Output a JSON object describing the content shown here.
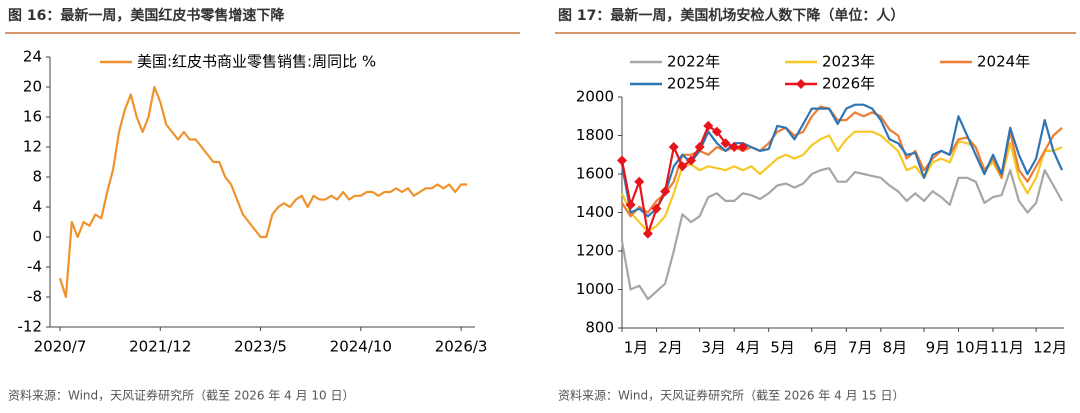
{
  "chart_data": [
    {
      "type": "line",
      "title": "图 16：最新一周，美国红皮书零售增速下降",
      "source": "资料来源：Wind，天风证券研究所（截至 2026 年 4 月 10 日）",
      "categories": [
        "2020/7",
        null,
        null,
        null,
        null,
        null,
        null,
        null,
        null,
        null,
        null,
        null,
        null,
        null,
        null,
        null,
        null,
        "2021/12",
        null,
        null,
        null,
        null,
        null,
        null,
        null,
        null,
        null,
        null,
        null,
        null,
        null,
        null,
        null,
        null,
        "2023/5",
        null,
        null,
        null,
        null,
        null,
        null,
        null,
        null,
        null,
        null,
        null,
        null,
        null,
        null,
        null,
        null,
        "2024/10",
        null,
        null,
        null,
        null,
        null,
        null,
        null,
        null,
        null,
        null,
        null,
        null,
        null,
        null,
        null,
        null,
        "2026/3",
        null
      ],
      "series": [
        {
          "name": "美国:红皮书商业零售销售:周同比 %",
          "color": "#f0922b",
          "values": [
            -5.5,
            -8,
            2,
            0,
            2,
            1.5,
            3,
            2.5,
            6,
            9,
            14,
            17,
            19,
            16,
            14,
            16,
            20,
            18,
            15,
            14,
            13,
            14,
            13,
            13,
            12,
            11,
            10,
            10,
            8,
            7,
            5,
            3,
            2,
            1,
            0,
            0,
            3,
            4,
            4.5,
            4,
            5,
            5.5,
            4,
            5.5,
            5,
            5,
            5.5,
            5,
            6,
            5,
            5.5,
            5.5,
            6,
            6,
            5.5,
            6,
            6,
            6.5,
            6,
            6.5,
            5.5,
            6,
            6.5,
            6.5,
            7,
            6.5,
            7,
            6,
            7,
            7
          ]
        }
      ],
      "ylim": [
        -12,
        24
      ],
      "yticks": [
        -12,
        -8,
        -4,
        0,
        4,
        8,
        12,
        16,
        20,
        24
      ],
      "legend": "top-left"
    },
    {
      "type": "line",
      "title": "图 17：最新一周，美国机场安检人数下降（单位：人）",
      "source": "资料来源：Wind，天风证券研究所（截至 2026 年 4 月 15 日）",
      "categories": [
        "1月",
        null,
        null,
        null,
        "2月",
        null,
        null,
        null,
        null,
        "3月",
        null,
        null,
        null,
        "4月",
        null,
        null,
        null,
        "5月",
        null,
        null,
        null,
        null,
        "6月",
        null,
        null,
        null,
        "7月",
        null,
        null,
        null,
        "8月",
        null,
        null,
        null,
        null,
        "9月",
        null,
        null,
        null,
        "10月",
        null,
        null,
        null,
        "11月",
        null,
        null,
        null,
        null,
        "12月",
        null,
        null,
        null
      ],
      "series": [
        {
          "name": "2022年",
          "color": "#a6a6a6",
          "values": [
            1250,
            1000,
            1020,
            950,
            990,
            1030,
            1200,
            1390,
            1350,
            1380,
            1480,
            1500,
            1460,
            1460,
            1500,
            1490,
            1470,
            1500,
            1540,
            1550,
            1530,
            1550,
            1600,
            1620,
            1630,
            1560,
            1560,
            1610,
            1600,
            1590,
            1580,
            1540,
            1510,
            1460,
            1500,
            1460,
            1510,
            1480,
            1440,
            1580,
            1580,
            1560,
            1450,
            1480,
            1490,
            1620,
            1460,
            1400,
            1450,
            1620,
            1540,
            1460
          ]
        },
        {
          "name": "2023年",
          "color": "#f7c824",
          "values": [
            1500,
            1400,
            1350,
            1300,
            1330,
            1380,
            1500,
            1640,
            1650,
            1620,
            1640,
            1630,
            1620,
            1640,
            1620,
            1640,
            1600,
            1640,
            1680,
            1700,
            1680,
            1700,
            1750,
            1780,
            1800,
            1720,
            1780,
            1820,
            1820,
            1820,
            1800,
            1760,
            1720,
            1620,
            1640,
            1580,
            1660,
            1680,
            1660,
            1770,
            1760,
            1740,
            1620,
            1660,
            1580,
            1760,
            1580,
            1500,
            1580,
            1720,
            1720,
            1740
          ]
        },
        {
          "name": "2024年",
          "color": "#ed7d31",
          "values": [
            1450,
            1380,
            1430,
            1400,
            1460,
            1500,
            1560,
            1700,
            1700,
            1720,
            1700,
            1740,
            1720,
            1740,
            1720,
            1740,
            1720,
            1760,
            1820,
            1840,
            1800,
            1820,
            1900,
            1950,
            1940,
            1880,
            1880,
            1920,
            1900,
            1920,
            1900,
            1830,
            1800,
            1680,
            1720,
            1620,
            1680,
            1720,
            1700,
            1780,
            1790,
            1740,
            1620,
            1680,
            1580,
            1820,
            1620,
            1560,
            1640,
            1720,
            1800,
            1840
          ]
        },
        {
          "name": "2025年",
          "color": "#2e75b6",
          "values": [
            1650,
            1400,
            1420,
            1380,
            1420,
            1500,
            1640,
            1700,
            1660,
            1720,
            1820,
            1760,
            1720,
            1760,
            1760,
            1740,
            1720,
            1730,
            1850,
            1840,
            1780,
            1860,
            1940,
            1940,
            1940,
            1860,
            1940,
            1960,
            1960,
            1940,
            1880,
            1780,
            1760,
            1700,
            1710,
            1580,
            1700,
            1720,
            1700,
            1900,
            1800,
            1700,
            1600,
            1700,
            1600,
            1840,
            1700,
            1600,
            1680,
            1880,
            1720,
            1620
          ]
        },
        {
          "name": "2026年",
          "color": "#e8141b",
          "marker": "diamond",
          "values": [
            1670,
            1440,
            1560,
            1290,
            1420,
            1510,
            1740,
            1640,
            1670,
            1740,
            1850,
            1820,
            1760,
            1740,
            1740,
            null,
            null,
            null,
            null,
            null,
            null,
            null,
            null,
            null,
            null,
            null,
            null,
            null,
            null,
            null,
            null,
            null,
            null,
            null,
            null,
            null,
            null,
            null,
            null,
            null,
            null,
            null,
            null,
            null,
            null,
            null,
            null,
            null,
            null,
            null,
            null,
            null
          ]
        }
      ],
      "ylim": [
        800,
        2000
      ],
      "yticks": [
        800,
        1000,
        1200,
        1400,
        1600,
        1800,
        2000
      ],
      "legend": "top"
    }
  ]
}
